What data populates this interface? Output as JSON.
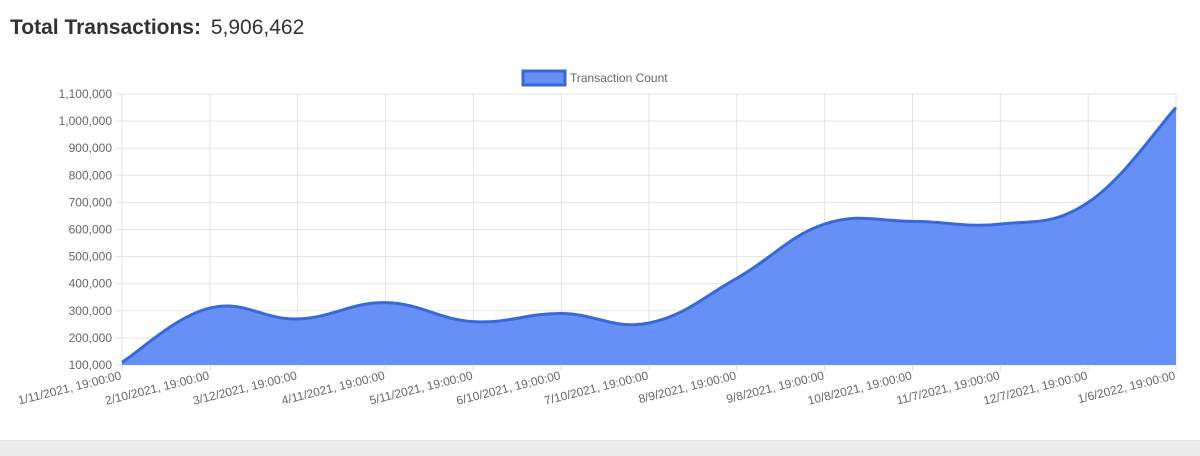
{
  "header": {
    "label": "Total Transactions:",
    "value": "5,906,462"
  },
  "colors": {
    "area_fill": "#6690f5",
    "line": "#3a68d8",
    "grid": "#e3e3e3",
    "text": "#666666"
  },
  "chart_data": {
    "type": "area",
    "legend": {
      "position": "top-center"
    },
    "grid": true,
    "series": [
      {
        "name": "Transaction Count",
        "values": [
          110000,
          310000,
          270000,
          330000,
          260000,
          290000,
          255000,
          420000,
          620000,
          630000,
          620000,
          700000,
          1050000
        ]
      }
    ],
    "categories": [
      "1/11/2021, 19:00:00",
      "2/10/2021, 19:00:00",
      "3/12/2021, 19:00:00",
      "4/11/2021, 19:00:00",
      "5/11/2021, 19:00:00",
      "6/10/2021, 19:00:00",
      "7/10/2021, 19:00:00",
      "8/9/2021, 19:00:00",
      "9/8/2021, 19:00:00",
      "10/8/2021, 19:00:00",
      "11/7/2021, 19:00:00",
      "12/7/2021, 19:00:00",
      "1/6/2022, 19:00:00"
    ],
    "ylim": [
      100000,
      1100000
    ],
    "yticks": [
      100000,
      200000,
      300000,
      400000,
      500000,
      600000,
      700000,
      800000,
      900000,
      1000000,
      1100000
    ],
    "ytick_labels": [
      "100,000",
      "200,000",
      "300,000",
      "400,000",
      "500,000",
      "600,000",
      "700,000",
      "800,000",
      "900,000",
      "1,000,000",
      "1,100,000"
    ]
  }
}
